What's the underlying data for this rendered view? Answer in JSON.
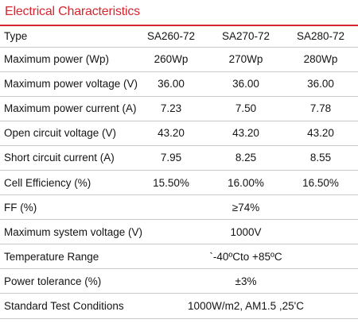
{
  "title": "Electrical Characteristics",
  "header": {
    "label": "Type",
    "models": [
      "SA260-72",
      "SA270-72",
      "SA280-72"
    ]
  },
  "rows": [
    {
      "label": "Maximum power (Wp)",
      "values": [
        "260Wp",
        "270Wp",
        "280Wp"
      ]
    },
    {
      "label": "Maximum power voltage (V)",
      "values": [
        "36.00",
        "36.00",
        "36.00"
      ]
    },
    {
      "label": "Maximum power current (A)",
      "values": [
        "7.23",
        "7.50",
        "7.78"
      ]
    },
    {
      "label": "Open circuit voltage (V)",
      "values": [
        "43.20",
        "43.20",
        "43.20"
      ]
    },
    {
      "label": "Short circuit current (A)",
      "values": [
        "7.95",
        "8.25",
        "8.55"
      ]
    },
    {
      "label": "Cell Efficiency (%)",
      "values": [
        "15.50%",
        "16.00%",
        "16.50%"
      ]
    }
  ],
  "shared_rows": [
    {
      "label": "FF (%)",
      "value": "≥74%"
    },
    {
      "label": "Maximum system voltage (V)",
      "value": "1000V"
    },
    {
      "label": "Temperature Range",
      "value": "`-40ºCto +85ºC"
    },
    {
      "label": "Power tolerance (%)",
      "value": "±3%"
    },
    {
      "label": "Standard Test Conditions",
      "value": "1000W/m2, AM1.5 ,25'C"
    }
  ],
  "colors": {
    "title": "#d6262f",
    "rule": "#d6262f",
    "row_divider": "#c9c9c9",
    "text": "#141414"
  }
}
